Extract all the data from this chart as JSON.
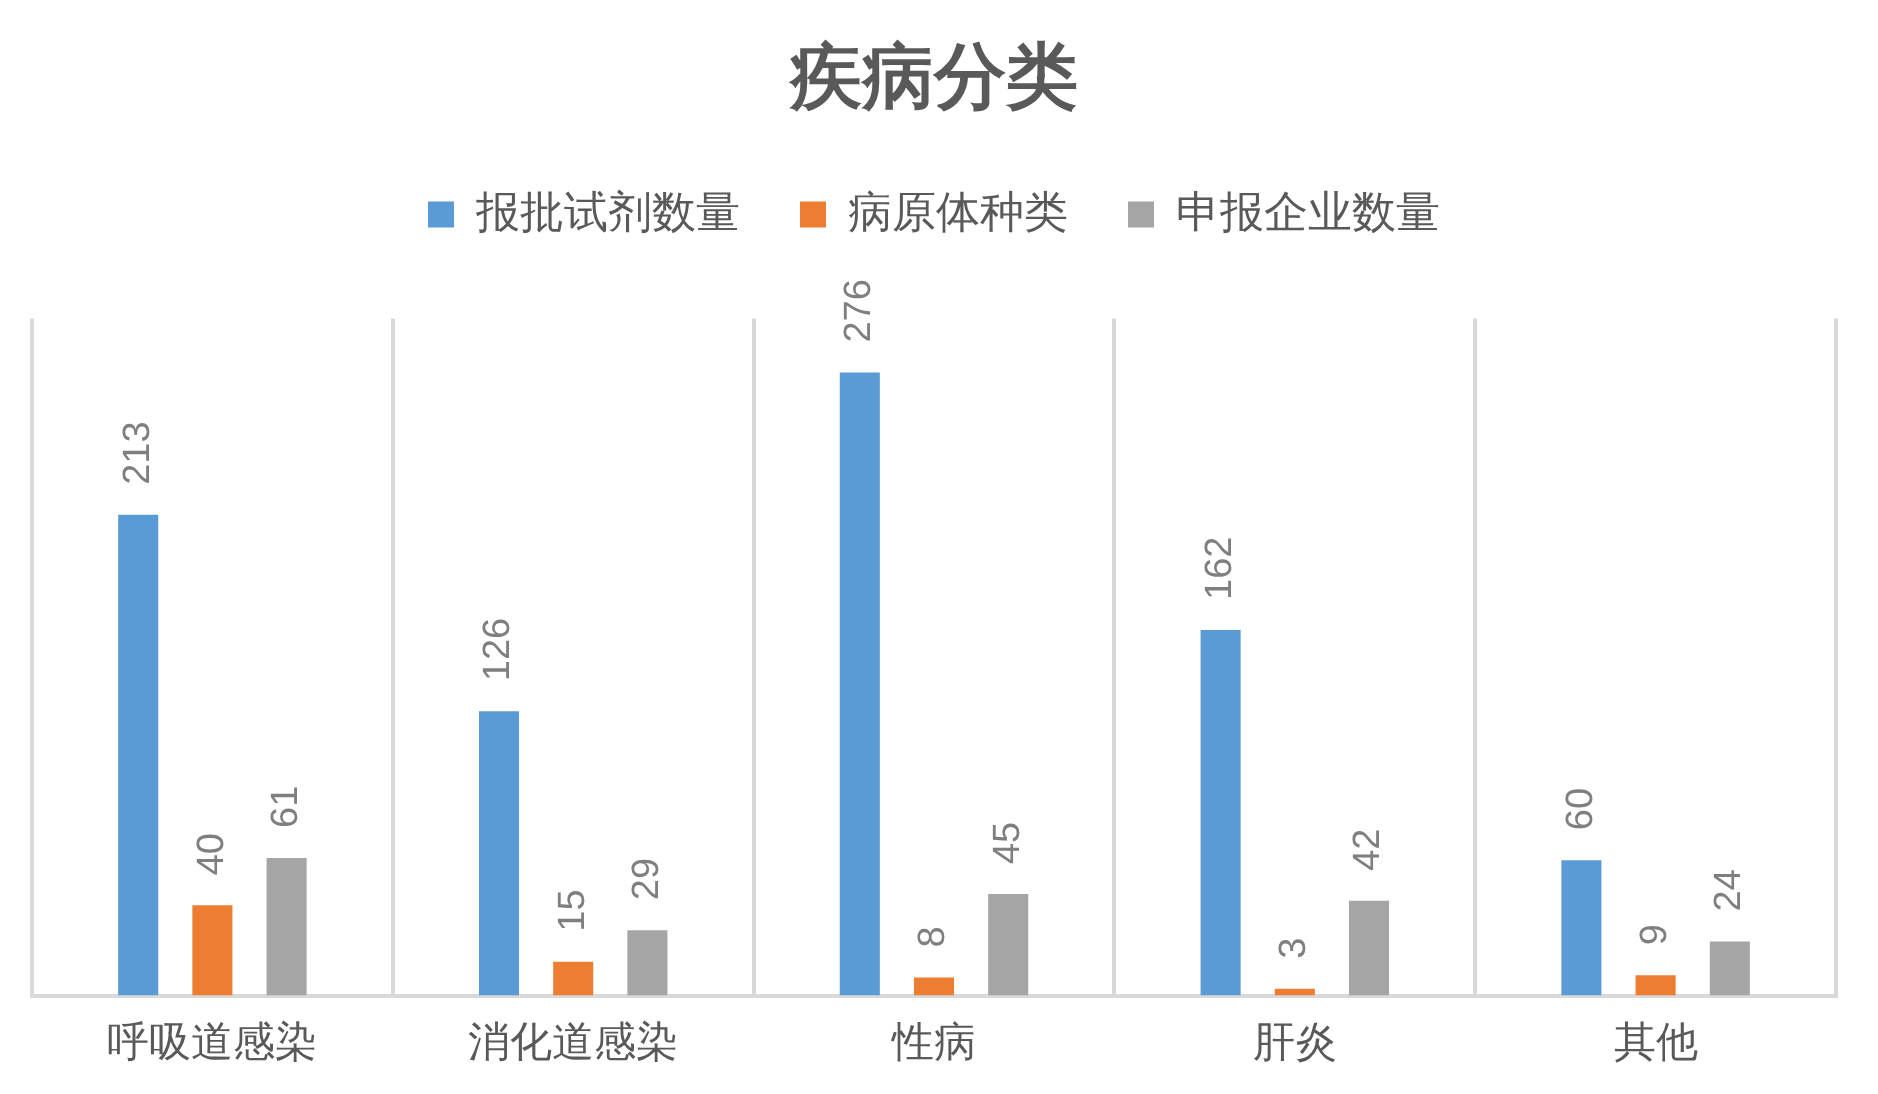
{
  "chart_data": {
    "type": "bar",
    "title": "疾病分类",
    "categories": [
      "呼吸道感染",
      "消化道感染",
      "性病",
      "肝炎",
      "其他"
    ],
    "series": [
      {
        "name": "报批试剂数量",
        "color": "#5b9bd5",
        "values": [
          213,
          126,
          276,
          162,
          60
        ]
      },
      {
        "name": "病原体种类",
        "color": "#ed7d31",
        "values": [
          40,
          15,
          8,
          3,
          9
        ]
      },
      {
        "name": "申报企业数量",
        "color": "#a5a5a5",
        "values": [
          61,
          29,
          45,
          42,
          24
        ]
      }
    ],
    "data_labels": true,
    "legend": "top",
    "grid": "x",
    "tick_labels": "x"
  }
}
